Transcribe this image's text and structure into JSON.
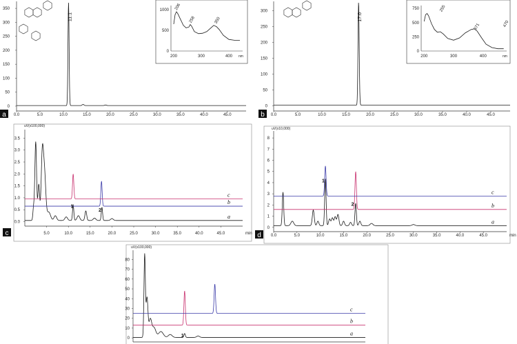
{
  "chart_data": [
    {
      "panel": "a",
      "type": "line",
      "x_ticks": [
        "0.0",
        "5.0",
        "10.0",
        "15.0",
        "20.0",
        "25.0",
        "30.0",
        "35.0",
        "40.0",
        "45.0"
      ],
      "y_ticks": [
        "0",
        "50",
        "100",
        "150",
        "200",
        "250",
        "300",
        "350"
      ],
      "xlim": [
        0,
        49
      ],
      "ylim": [
        -10,
        370
      ],
      "series": [
        {
          "color": "#1a1a1a",
          "baseline": 2,
          "peaks": [
            [
              11.1,
              370,
              0.12
            ],
            [
              14.2,
              4,
              0.2
            ],
            [
              19.0,
              2,
              0.2
            ]
          ]
        }
      ],
      "peak_labels": [
        {
          "text": "11.1",
          "x": 11.1,
          "y": 370
        }
      ],
      "inset": {
        "x_ticks": [
          "200",
          "300",
          "400"
        ],
        "y_ticks": [
          "0",
          "500",
          "1000"
        ],
        "x_unit": "nm",
        "xlim": [
          190,
          450
        ],
        "ylim": [
          0,
          1100
        ],
        "points": [
          [
            200,
            650
          ],
          [
            205,
            880
          ],
          [
            210,
            950
          ],
          [
            215,
            900
          ],
          [
            225,
            760
          ],
          [
            235,
            620
          ],
          [
            245,
            560
          ],
          [
            255,
            580
          ],
          [
            260,
            640
          ],
          [
            265,
            600
          ],
          [
            275,
            470
          ],
          [
            290,
            420
          ],
          [
            305,
            430
          ],
          [
            320,
            470
          ],
          [
            335,
            560
          ],
          [
            345,
            620
          ],
          [
            355,
            590
          ],
          [
            365,
            520
          ],
          [
            380,
            380
          ],
          [
            400,
            280
          ],
          [
            420,
            260
          ],
          [
            440,
            260
          ]
        ],
        "peak_labels": [
          "206",
          "258",
          "350"
        ]
      }
    },
    {
      "panel": "b",
      "type": "line",
      "x_ticks": [
        "0.0",
        "5.0",
        "10.0",
        "15.0",
        "20.0",
        "25.0",
        "30.0",
        "35.0",
        "40.0",
        "45.0"
      ],
      "y_ticks": [
        "0",
        "50",
        "100",
        "150",
        "200",
        "250",
        "300"
      ],
      "xlim": [
        0,
        49
      ],
      "ylim": [
        -10,
        325
      ],
      "series": [
        {
          "color": "#1a1a1a",
          "baseline": 2,
          "peaks": [
            [
              17.6,
              325,
              0.12
            ],
            [
              17.8,
              12,
              0.1
            ]
          ]
        }
      ],
      "peak_labels": [
        {
          "text": "17.6",
          "x": 17.6,
          "y": 325
        }
      ],
      "inset": {
        "x_ticks": [
          "200",
          "300",
          "400"
        ],
        "y_ticks": [
          "0",
          "250",
          "500",
          "750"
        ],
        "x_unit": "nm",
        "xlim": [
          190,
          480
        ],
        "ylim": [
          0,
          800
        ],
        "points": [
          [
            200,
            520
          ],
          [
            205,
            640
          ],
          [
            210,
            660
          ],
          [
            215,
            620
          ],
          [
            225,
            480
          ],
          [
            235,
            380
          ],
          [
            245,
            330
          ],
          [
            255,
            340
          ],
          [
            265,
            300
          ],
          [
            280,
            220
          ],
          [
            300,
            190
          ],
          [
            320,
            230
          ],
          [
            340,
            320
          ],
          [
            360,
            380
          ],
          [
            370,
            390
          ],
          [
            380,
            350
          ],
          [
            395,
            230
          ],
          [
            410,
            120
          ],
          [
            430,
            60
          ],
          [
            450,
            40
          ],
          [
            470,
            40
          ]
        ],
        "peak_labels": [
          "255",
          "371",
          "470"
        ]
      }
    },
    {
      "panel": "c",
      "type": "line",
      "y_unit": "uV(x100,000)",
      "x_ticks": [
        "5.0",
        "10.0",
        "15.0",
        "20.0",
        "25.0",
        "30.0",
        "35.0",
        "40.0",
        "45.0"
      ],
      "y_ticks": [
        "0.0",
        "0.5",
        "1.0",
        "1.5",
        "2.0",
        "2.5",
        "3.0",
        "3.5"
      ],
      "x_unit": "min",
      "xlim": [
        0,
        50
      ],
      "ylim": [
        -0.1,
        3.8
      ],
      "series": [
        {
          "name": "a",
          "color": "#1a1a1a",
          "baseline": 0.05,
          "peaks": [
            [
              2.0,
              0.5,
              0.15
            ],
            [
              2.5,
              3.3,
              0.2
            ],
            [
              3.2,
              1.5,
              0.2
            ],
            [
              4.0,
              2.6,
              0.25
            ],
            [
              4.5,
              2.0,
              0.3
            ],
            [
              5.5,
              0.35,
              0.4
            ],
            [
              7.0,
              0.2,
              0.3
            ],
            [
              9.5,
              0.15,
              0.3
            ],
            [
              11.1,
              0.65,
              0.15
            ],
            [
              12.3,
              0.2,
              0.3
            ],
            [
              14.0,
              0.4,
              0.2
            ],
            [
              16.0,
              0.1,
              0.3
            ],
            [
              17.7,
              0.55,
              0.15
            ],
            [
              20.0,
              0.08,
              0.3
            ]
          ]
        },
        {
          "name": "b",
          "color": "#3a3aa8",
          "baseline": 0.65,
          "peaks": [
            [
              17.6,
              1.05,
              0.15
            ]
          ]
        },
        {
          "name": "c",
          "color": "#c8306e",
          "baseline": 0.95,
          "peaks": [
            [
              11.1,
              1.05,
              0.15
            ]
          ]
        }
      ],
      "peak_labels": [
        {
          "text": "1",
          "x": 11.0,
          "y": 0.75
        },
        {
          "text": "2",
          "x": 17.4,
          "y": 0.6
        }
      ]
    },
    {
      "panel": "d",
      "type": "line",
      "y_unit": "uV(x10,000)",
      "x_ticks": [
        "0.0",
        "5.0",
        "10.0",
        "15.0",
        "20.0",
        "25.0",
        "30.0",
        "35.0",
        "40.0",
        "45.0"
      ],
      "y_ticks": [
        "0",
        "1",
        "2",
        "3",
        "4",
        "5",
        "6",
        "7",
        "8"
      ],
      "x_unit": "min",
      "xlim": [
        0,
        50
      ],
      "ylim": [
        -0.2,
        8.5
      ],
      "series": [
        {
          "name": "a",
          "color": "#1a1a1a",
          "baseline": 0.15,
          "peaks": [
            [
              2.0,
              3.0,
              0.15
            ],
            [
              4.0,
              0.4,
              0.3
            ],
            [
              8.5,
              1.4,
              0.2
            ],
            [
              9.5,
              0.4,
              0.2
            ],
            [
              11.1,
              4.2,
              0.15
            ],
            [
              12.0,
              0.6,
              0.2
            ],
            [
              12.6,
              0.7,
              0.2
            ],
            [
              13.2,
              0.8,
              0.2
            ],
            [
              13.8,
              1.0,
              0.2
            ],
            [
              15.0,
              0.4,
              0.2
            ],
            [
              16.5,
              0.3,
              0.2
            ],
            [
              17.6,
              2.0,
              0.15
            ],
            [
              18.5,
              0.4,
              0.2
            ],
            [
              21.0,
              0.2,
              0.3
            ],
            [
              30.0,
              0.1,
              0.3
            ]
          ]
        },
        {
          "name": "b",
          "color": "#c8306e",
          "baseline": 1.6,
          "peaks": [
            [
              17.6,
              3.4,
              0.15
            ]
          ]
        },
        {
          "name": "c",
          "color": "#3a3aa8",
          "baseline": 2.8,
          "peaks": [
            [
              11.1,
              2.7,
              0.15
            ]
          ]
        }
      ],
      "peak_labels": [
        {
          "text": "1",
          "x": 10.8,
          "y": 4.4
        },
        {
          "text": "2",
          "x": 17.1,
          "y": 2.3
        }
      ]
    },
    {
      "panel": "e",
      "type": "line",
      "y_unit": "uV(x100,000)",
      "y_ticks": [
        "0",
        "10",
        "20",
        "30",
        "40",
        "50",
        "60",
        "70",
        "80"
      ],
      "xlim": [
        0,
        50
      ],
      "ylim": [
        -2,
        88
      ],
      "series": [
        {
          "name": "a",
          "color": "#1a1a1a",
          "baseline": 0.5,
          "peaks": [
            [
              2.5,
              84,
              0.15
            ],
            [
              3.0,
              40,
              0.2
            ],
            [
              3.7,
              18,
              0.3
            ],
            [
              4.5,
              10,
              0.4
            ],
            [
              6.0,
              6,
              0.5
            ],
            [
              8.0,
              3,
              0.4
            ],
            [
              11.1,
              4,
              0.15
            ],
            [
              14.0,
              1.5,
              0.3
            ]
          ]
        },
        {
          "name": "b",
          "color": "#c8306e",
          "baseline": 13,
          "peaks": [
            [
              11.1,
              35,
              0.15
            ]
          ]
        },
        {
          "name": "c",
          "color": "#3a3aa8",
          "baseline": 25,
          "peaks": [
            [
              17.6,
              30,
              0.15
            ]
          ]
        }
      ],
      "peak_labels": [
        {
          "text": "1",
          "x": 10.8,
          "y": 5
        }
      ]
    }
  ],
  "panel_badges": [
    "a",
    "b",
    "c",
    "d"
  ]
}
